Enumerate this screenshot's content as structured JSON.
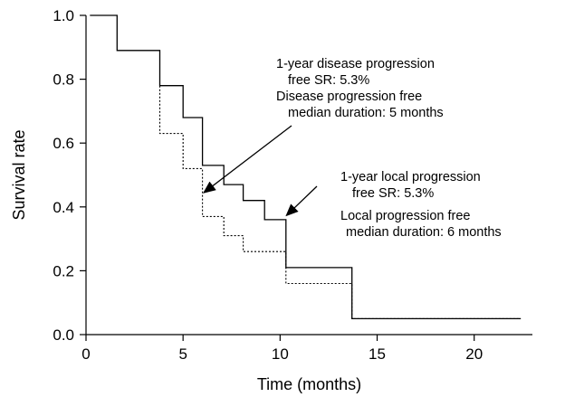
{
  "chart_data": {
    "type": "line",
    "title": "",
    "xlabel": "Time (months)",
    "ylabel": "Survival rate",
    "xlim": [
      0,
      23
    ],
    "ylim": [
      0,
      1.0
    ],
    "x_ticks": [
      0,
      5,
      10,
      15,
      20
    ],
    "x_tick_labels": [
      "0",
      "5",
      "10",
      "15",
      "20"
    ],
    "y_ticks": [
      0.0,
      0.2,
      0.4,
      0.6,
      0.8,
      1.0
    ],
    "y_tick_labels": [
      "0.0",
      "0.2",
      "0.4",
      "0.6",
      "0.8",
      "1.0"
    ],
    "grid": false,
    "legend": "none",
    "series": [
      {
        "line_style": "solid",
        "color": "#000000",
        "x": [
          0.2,
          1.6,
          1.6,
          3.8,
          3.8,
          5.0,
          5.0,
          6.0,
          6.0,
          7.1,
          7.1,
          8.1,
          8.1,
          9.2,
          9.2,
          10.3,
          10.3,
          13.7,
          13.7,
          22.4
        ],
        "y": [
          1.0,
          1.0,
          0.89,
          0.89,
          0.78,
          0.78,
          0.68,
          0.68,
          0.53,
          0.53,
          0.47,
          0.47,
          0.42,
          0.42,
          0.36,
          0.36,
          0.21,
          0.21,
          0.05,
          0.05
        ]
      },
      {
        "line_style": "dotted",
        "color": "#000000",
        "x": [
          3.8,
          3.8,
          5.0,
          5.0,
          6.0,
          6.0,
          7.1,
          7.1,
          8.1,
          8.1,
          10.3,
          10.3,
          13.7,
          13.7,
          22.4
        ],
        "y": [
          0.78,
          0.63,
          0.63,
          0.52,
          0.52,
          0.37,
          0.37,
          0.31,
          0.31,
          0.26,
          0.26,
          0.16,
          0.16,
          0.05,
          0.05
        ]
      }
    ],
    "annotations": [
      {
        "lines": [
          "1-year disease progression",
          "free SR: 5.3%",
          "Disease progression free",
          "median duration: 5 months"
        ],
        "arrow_to": [
          6.0,
          0.44
        ]
      },
      {
        "lines": [
          "1-year local progression",
          "free SR: 5.3%",
          "Local progression free",
          "median duration: 6 months"
        ],
        "arrow_to": [
          10.3,
          0.36
        ]
      }
    ]
  }
}
